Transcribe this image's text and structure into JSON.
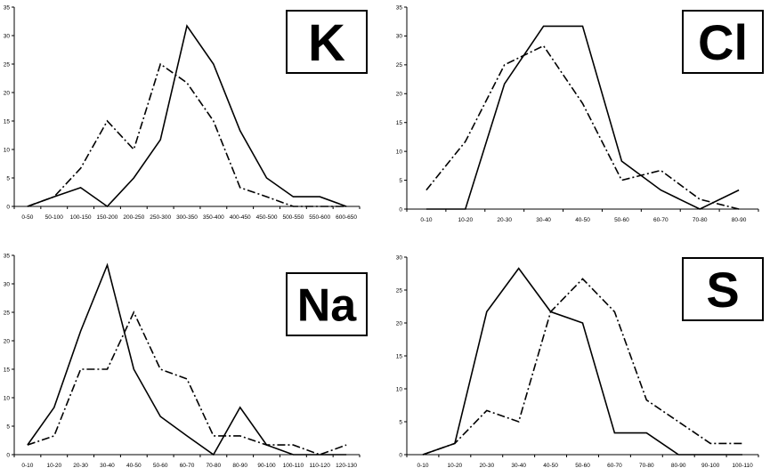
{
  "chart_data": [
    {
      "type": "line",
      "panel_label": "K",
      "categories": [
        "0-50",
        "50-100",
        "100-150",
        "150-200",
        "200-250",
        "250-300",
        "300-350",
        "350-400",
        "400-450",
        "450-500",
        "500-550",
        "550-600",
        "600-650"
      ],
      "ylim": [
        0,
        35
      ],
      "yticks": [
        0,
        5,
        10,
        15,
        20,
        25,
        30,
        35
      ],
      "grid": false,
      "legend": "none",
      "series": [
        {
          "style": "solid",
          "values": [
            0,
            1.7,
            3.3,
            0,
            5,
            11.7,
            31.7,
            25,
            13.3,
            5,
            1.7,
            1.7,
            0
          ]
        },
        {
          "style": "dash-dot",
          "values": [
            0,
            1.7,
            6.7,
            15,
            10,
            25,
            21.7,
            15,
            3.3,
            1.7,
            0,
            0,
            0
          ]
        }
      ]
    },
    {
      "type": "line",
      "panel_label": "Cl",
      "categories": [
        "0-10",
        "10-20",
        "20-30",
        "30-40",
        "40-50",
        "50-60",
        "60-70",
        "70-80",
        "80-90"
      ],
      "ylim": [
        0,
        35
      ],
      "yticks": [
        0,
        5,
        10,
        15,
        20,
        25,
        30,
        35
      ],
      "grid": false,
      "legend": "none",
      "series": [
        {
          "style": "solid",
          "values": [
            0,
            0,
            21.7,
            31.7,
            31.7,
            8.3,
            3.3,
            0,
            3.3
          ]
        },
        {
          "style": "dash-dot",
          "values": [
            3.3,
            11.7,
            25,
            28.3,
            18.3,
            5,
            6.7,
            1.7,
            0
          ]
        }
      ]
    },
    {
      "type": "line",
      "panel_label": "Na",
      "categories": [
        "0-10",
        "10-20",
        "20-30",
        "30-40",
        "40-50",
        "50-60",
        "60-70",
        "70-80",
        "80-90",
        "90-100",
        "100-110",
        "110-120",
        "120-130"
      ],
      "ylim": [
        0,
        35
      ],
      "yticks": [
        0,
        5,
        10,
        15,
        20,
        25,
        30,
        35
      ],
      "grid": false,
      "legend": "none",
      "series": [
        {
          "style": "solid",
          "values": [
            1.7,
            8.3,
            21.7,
            33.3,
            15,
            6.7,
            3.3,
            0,
            8.3,
            1.7,
            0,
            0,
            0
          ]
        },
        {
          "style": "dash-dot",
          "values": [
            1.7,
            3.3,
            15,
            15,
            25,
            15,
            13.3,
            3.3,
            3.3,
            1.7,
            1.7,
            0,
            1.7
          ]
        }
      ]
    },
    {
      "type": "line",
      "panel_label": "S",
      "categories": [
        "0-10",
        "10-20",
        "20-30",
        "30-40",
        "40-50",
        "50-60",
        "60-70",
        "70-80",
        "80-90",
        "90-100",
        "100-110"
      ],
      "ylim": [
        0,
        30
      ],
      "yticks": [
        0,
        5,
        10,
        15,
        20,
        25,
        30
      ],
      "grid": false,
      "legend": "none",
      "series": [
        {
          "style": "solid",
          "values": [
            0,
            1.7,
            21.7,
            28.3,
            21.7,
            20,
            3.3,
            3.3,
            0,
            0,
            0
          ]
        },
        {
          "style": "dash-dot",
          "values": [
            0,
            1.7,
            6.7,
            5,
            21.7,
            26.7,
            21.7,
            8.3,
            5,
            1.7,
            1.7
          ]
        }
      ]
    }
  ],
  "colors": {
    "line": "#000000",
    "axis": "#000000",
    "background": "#ffffff"
  }
}
